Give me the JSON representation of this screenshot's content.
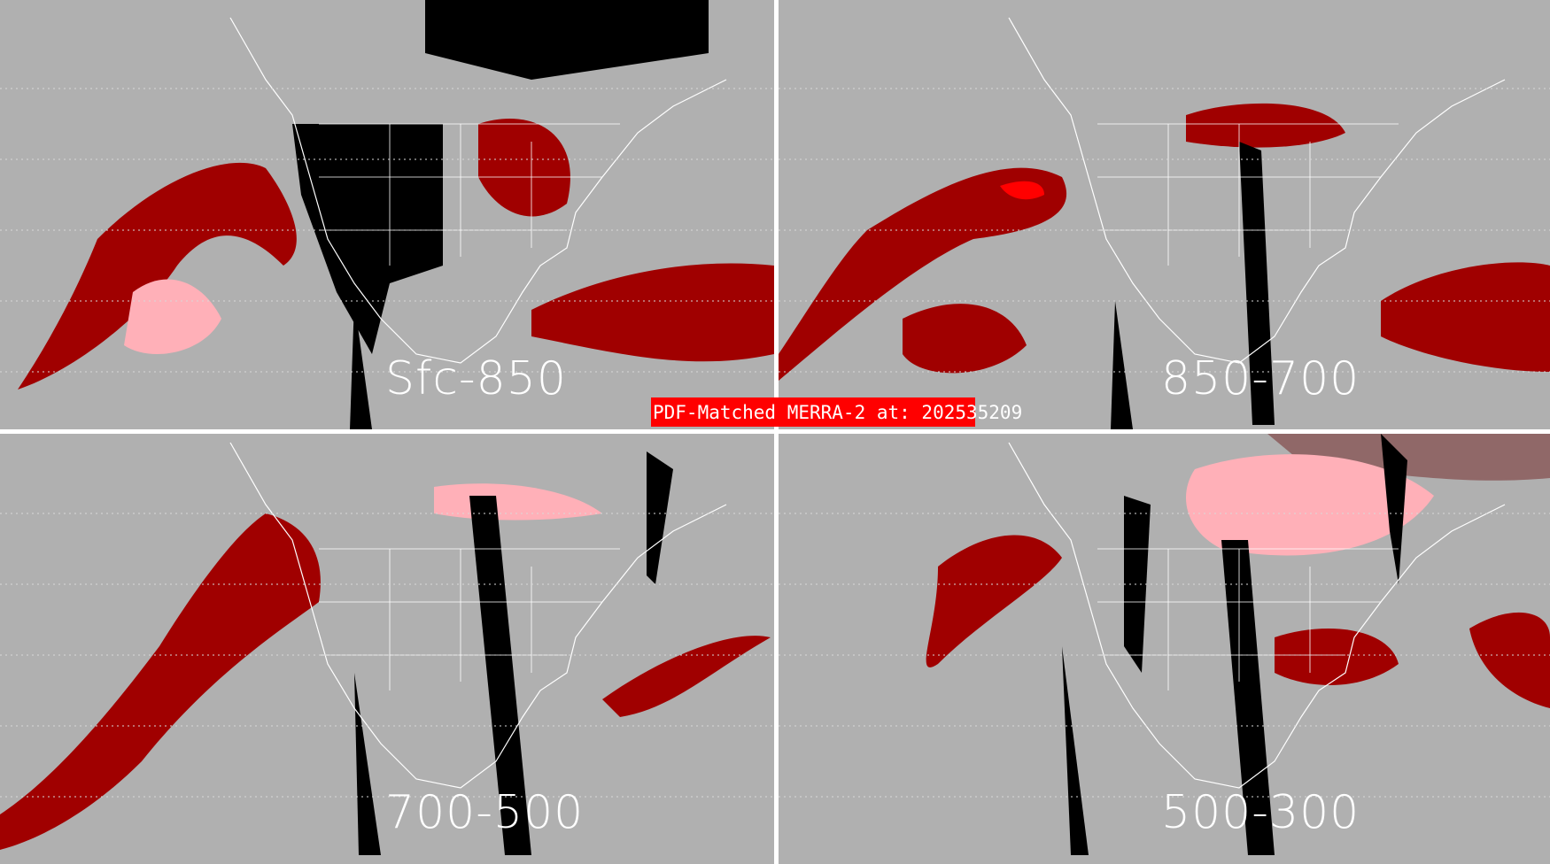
{
  "title": "PDF-Matched MERRA-2 at: 202535209",
  "panels": [
    {
      "label": "Sfc-850"
    },
    {
      "label": "850-700"
    },
    {
      "label": "700-500"
    },
    {
      "label": "500-300"
    }
  ],
  "colors": {
    "background": "#b0b0b0",
    "dark_red": "#a00000",
    "red": "#ff0000",
    "pink": "#ffb0b8",
    "mauve": "#906868",
    "missing": "#000000",
    "map_lines": "#ffffff",
    "banner": "#ff0000"
  }
}
